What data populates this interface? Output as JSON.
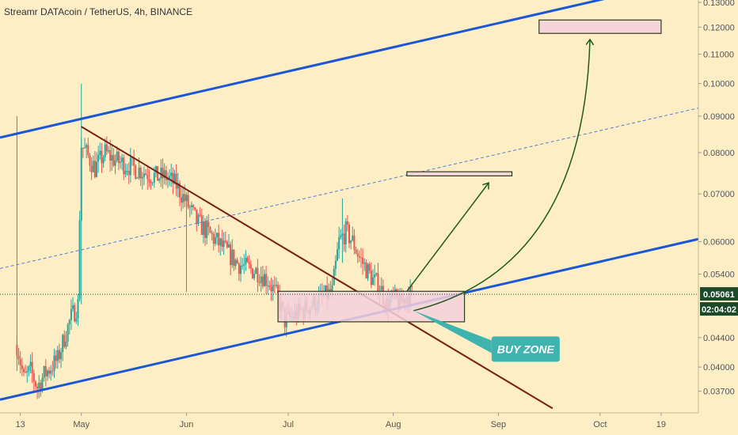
{
  "title": "Streamr DATAcoin / TetherUS, 4h, BINANCE",
  "current_price_label": "0.05061",
  "countdown_label": "02:04:02",
  "buy_zone_label": "BUY ZONE",
  "colors": {
    "background": "#fdeec6",
    "channel": "#1a56d6",
    "downtrend": "#7a1c12",
    "arrow": "#1f5a1f",
    "up_candle": "#26a69a",
    "down_candle": "#ef5350",
    "zone_fill": "#f5d0dc",
    "zone_border": "#2c3c1f",
    "buy_zone_bg": "#3fb3ae",
    "price_tag": "#1b4a2a",
    "countdown_tag": "#1b4a2a"
  },
  "chart_data": {
    "type": "candlestick",
    "y_axis": {
      "scale": "log",
      "ticks": [
        0.037,
        0.04,
        0.044,
        0.054,
        0.06,
        0.07,
        0.08,
        0.09,
        0.1,
        0.11,
        0.12,
        0.13
      ],
      "tick_labels": [
        "0.03700",
        "0.04000",
        "0.04400",
        "0.05400",
        "0.06000",
        "0.07000",
        "0.08000",
        "0.09000",
        "0.10000",
        "0.11000",
        "0.12000",
        "0.13000"
      ],
      "range": [
        0.0345,
        0.131
      ]
    },
    "x_axis": {
      "range": [
        "2020-04-07",
        "2020-10-30"
      ],
      "ticks": [
        {
          "label": "13",
          "date": "2020-04-13"
        },
        {
          "label": "May",
          "date": "2020-05-01"
        },
        {
          "label": "Jun",
          "date": "2020-06-01"
        },
        {
          "label": "Jul",
          "date": "2020-07-01"
        },
        {
          "label": "Aug",
          "date": "2020-08-01"
        },
        {
          "label": "Sep",
          "date": "2020-09-01"
        },
        {
          "label": "Oct",
          "date": "2020-10-01"
        },
        {
          "label": "19",
          "date": "2020-10-19"
        }
      ]
    },
    "price_path": [
      [
        "2020-04-12",
        0.043
      ],
      [
        "2020-04-14",
        0.0385
      ],
      [
        "2020-04-16",
        0.0395
      ],
      [
        "2020-04-18",
        0.0375
      ],
      [
        "2020-04-20",
        0.039
      ],
      [
        "2020-04-22",
        0.04
      ],
      [
        "2020-04-24",
        0.041
      ],
      [
        "2020-04-26",
        0.044
      ],
      [
        "2020-04-28",
        0.047
      ],
      [
        "2020-04-30",
        0.049
      ],
      [
        "2020-05-01",
        0.082
      ],
      [
        "2020-05-03",
        0.079
      ],
      [
        "2020-05-05",
        0.076
      ],
      [
        "2020-05-08",
        0.08
      ],
      [
        "2020-05-11",
        0.078
      ],
      [
        "2020-05-14",
        0.077
      ],
      [
        "2020-05-17",
        0.076
      ],
      [
        "2020-05-20",
        0.075
      ],
      [
        "2020-05-23",
        0.074
      ],
      [
        "2020-05-26",
        0.074
      ],
      [
        "2020-05-29",
        0.072
      ],
      [
        "2020-06-01",
        0.068
      ],
      [
        "2020-06-04",
        0.064
      ],
      [
        "2020-06-07",
        0.062
      ],
      [
        "2020-06-10",
        0.06
      ],
      [
        "2020-06-13",
        0.058
      ],
      [
        "2020-06-16",
        0.056
      ],
      [
        "2020-06-19",
        0.055
      ],
      [
        "2020-06-22",
        0.0545
      ],
      [
        "2020-06-25",
        0.053
      ],
      [
        "2020-06-28",
        0.05
      ],
      [
        "2020-06-30",
        0.0465
      ],
      [
        "2020-07-02",
        0.047
      ],
      [
        "2020-07-05",
        0.048
      ],
      [
        "2020-07-08",
        0.049
      ],
      [
        "2020-07-11",
        0.05
      ],
      [
        "2020-07-14",
        0.051
      ],
      [
        "2020-07-16",
        0.06
      ],
      [
        "2020-07-18",
        0.062
      ],
      [
        "2020-07-20",
        0.06
      ],
      [
        "2020-07-22",
        0.057
      ],
      [
        "2020-07-24",
        0.055
      ],
      [
        "2020-07-26",
        0.053
      ],
      [
        "2020-07-28",
        0.052
      ],
      [
        "2020-07-30",
        0.049
      ],
      [
        "2020-08-01",
        0.05
      ],
      [
        "2020-08-03",
        0.049
      ],
      [
        "2020-08-05",
        0.0505
      ],
      [
        "2020-08-07",
        0.0506
      ]
    ],
    "spikes": [
      {
        "date": "2020-04-12",
        "high": 0.09,
        "low": 0.0395
      },
      {
        "date": "2020-05-01",
        "high": 0.1,
        "low": 0.049
      },
      {
        "date": "2020-06-01",
        "high": 0.069,
        "low": 0.051
      },
      {
        "date": "2020-07-17",
        "high": 0.069,
        "low": 0.056
      }
    ],
    "annotations": {
      "channel_lower": [
        [
          "2020-04-07",
          0.036
        ],
        [
          "2020-10-30",
          0.0605
        ]
      ],
      "channel_upper": [
        [
          "2020-04-07",
          0.084
        ],
        [
          "2020-10-30",
          0.141
        ]
      ],
      "channel_mid": [
        [
          "2020-04-07",
          0.055
        ],
        [
          "2020-10-30",
          0.0924
        ]
      ],
      "downtrend": [
        [
          "2020-05-01",
          0.087
        ],
        [
          "2020-09-17",
          0.035
        ]
      ],
      "buy_zone_box": {
        "x": [
          "2020-06-28",
          "2020-08-22"
        ],
        "y": [
          0.0463,
          0.0511
        ]
      },
      "target1_box": {
        "x": [
          "2020-08-05",
          "2020-09-05"
        ],
        "y": [
          0.0742,
          0.0752
        ]
      },
      "target2_box": {
        "x": [
          "2020-09-13",
          "2020-10-19"
        ],
        "y": [
          0.1176,
          0.1228
        ]
      },
      "current_price": 0.05061
    }
  }
}
